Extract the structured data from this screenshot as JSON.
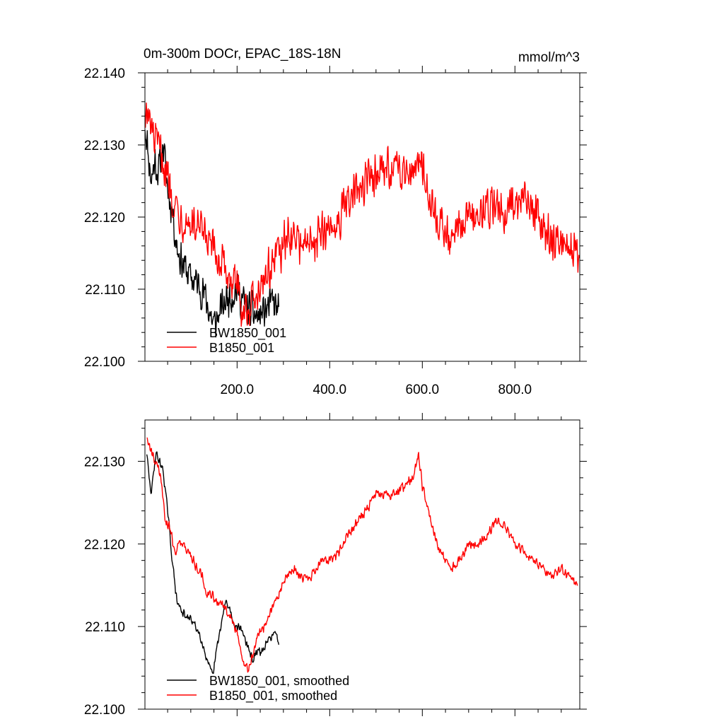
{
  "chart_data": [
    {
      "type": "line",
      "title": "0m-300m DOCr, EPAC_18S-18N",
      "units": "mmol/m^3",
      "xlim": [
        1,
        940
      ],
      "ylim": [
        22.1,
        22.14
      ],
      "x_ticks": [
        200,
        400,
        600,
        800
      ],
      "x_tick_labels": [
        "200.0",
        "400.0",
        "600.0",
        "800.0"
      ],
      "y_ticks": [
        22.1,
        22.11,
        22.12,
        22.13,
        22.14
      ],
      "y_tick_labels": [
        "22.100",
        "22.110",
        "22.120",
        "22.130",
        "22.140"
      ],
      "legend": "bottom-left",
      "series": [
        {
          "name": "BW1850_001",
          "color": "#000000",
          "noise": 0.0032,
          "points": [
            [
              1,
              22.133
            ],
            [
              8,
              22.129
            ],
            [
              15,
              22.125
            ],
            [
              22,
              22.128
            ],
            [
              30,
              22.126
            ],
            [
              40,
              22.13
            ],
            [
              50,
              22.124
            ],
            [
              60,
              22.121
            ],
            [
              70,
              22.116
            ],
            [
              80,
              22.114
            ],
            [
              95,
              22.112
            ],
            [
              110,
              22.111
            ],
            [
              125,
              22.11
            ],
            [
              140,
              22.107
            ],
            [
              150,
              22.105
            ],
            [
              165,
              22.107
            ],
            [
              180,
              22.109
            ],
            [
              200,
              22.11
            ],
            [
              215,
              22.108
            ],
            [
              230,
              22.107
            ],
            [
              245,
              22.106
            ],
            [
              260,
              22.107
            ],
            [
              275,
              22.108
            ],
            [
              290,
              22.107
            ]
          ]
        },
        {
          "name": "B1850_001",
          "color": "#ff0000",
          "noise": 0.0035,
          "points": [
            [
              1,
              22.135
            ],
            [
              10,
              22.133
            ],
            [
              25,
              22.13
            ],
            [
              40,
              22.128
            ],
            [
              60,
              22.123
            ],
            [
              80,
              22.12
            ],
            [
              100,
              22.119
            ],
            [
              120,
              22.118
            ],
            [
              140,
              22.116
            ],
            [
              160,
              22.114
            ],
            [
              180,
              22.112
            ],
            [
              200,
              22.11
            ],
            [
              215,
              22.107
            ],
            [
              230,
              22.108
            ],
            [
              250,
              22.111
            ],
            [
              270,
              22.113
            ],
            [
              290,
              22.115
            ],
            [
              310,
              22.117
            ],
            [
              330,
              22.117
            ],
            [
              350,
              22.116
            ],
            [
              370,
              22.117
            ],
            [
              390,
              22.118
            ],
            [
              410,
              22.119
            ],
            [
              430,
              22.121
            ],
            [
              450,
              22.123
            ],
            [
              470,
              22.124
            ],
            [
              490,
              22.126
            ],
            [
              510,
              22.126
            ],
            [
              530,
              22.127
            ],
            [
              550,
              22.126
            ],
            [
              570,
              22.127
            ],
            [
              590,
              22.128
            ],
            [
              600,
              22.127
            ],
            [
              620,
              22.122
            ],
            [
              640,
              22.119
            ],
            [
              660,
              22.117
            ],
            [
              680,
              22.118
            ],
            [
              700,
              22.12
            ],
            [
              720,
              22.121
            ],
            [
              740,
              22.121
            ],
            [
              760,
              22.122
            ],
            [
              780,
              22.121
            ],
            [
              800,
              22.122
            ],
            [
              820,
              22.123
            ],
            [
              840,
              22.121
            ],
            [
              860,
              22.119
            ],
            [
              880,
              22.117
            ],
            [
              900,
              22.117
            ],
            [
              920,
              22.116
            ],
            [
              930,
              22.116
            ],
            [
              940,
              22.113
            ]
          ]
        }
      ]
    },
    {
      "type": "line",
      "title": "",
      "xlim": [
        1,
        940
      ],
      "ylim": [
        22.1,
        22.135
      ],
      "x_ticks": [
        200,
        400,
        600,
        800
      ],
      "y_ticks": [
        22.1,
        22.11,
        22.12,
        22.13
      ],
      "y_tick_labels": [
        "22.100",
        "22.110",
        "22.120",
        "22.130"
      ],
      "legend": "bottom-left",
      "series": [
        {
          "name": "BW1850_001, smoothed",
          "color": "#000000",
          "noise": 0.0006,
          "points": [
            [
              5,
              22.131
            ],
            [
              10,
              22.128
            ],
            [
              15,
              22.126
            ],
            [
              20,
              22.129
            ],
            [
              25,
              22.131
            ],
            [
              32,
              22.13
            ],
            [
              40,
              22.129
            ],
            [
              50,
              22.124
            ],
            [
              60,
              22.118
            ],
            [
              70,
              22.113
            ],
            [
              80,
              22.112
            ],
            [
              90,
              22.111
            ],
            [
              100,
              22.111
            ],
            [
              110,
              22.11
            ],
            [
              120,
              22.109
            ],
            [
              130,
              22.107
            ],
            [
              140,
              22.105
            ],
            [
              148,
              22.104
            ],
            [
              155,
              22.107
            ],
            [
              165,
              22.11
            ],
            [
              175,
              22.113
            ],
            [
              185,
              22.112
            ],
            [
              195,
              22.11
            ],
            [
              205,
              22.11
            ],
            [
              215,
              22.109
            ],
            [
              225,
              22.107
            ],
            [
              235,
              22.106
            ],
            [
              245,
              22.107
            ],
            [
              255,
              22.107
            ],
            [
              265,
              22.108
            ],
            [
              275,
              22.109
            ],
            [
              285,
              22.109
            ],
            [
              290,
              22.108
            ]
          ]
        },
        {
          "name": "B1850_001, smoothed",
          "color": "#ff0000",
          "noise": 0.0007,
          "points": [
            [
              5,
              22.133
            ],
            [
              15,
              22.131
            ],
            [
              25,
              22.13
            ],
            [
              35,
              22.128
            ],
            [
              45,
              22.123
            ],
            [
              55,
              22.122
            ],
            [
              65,
              22.119
            ],
            [
              75,
              22.12
            ],
            [
              85,
              22.12
            ],
            [
              95,
              22.119
            ],
            [
              105,
              22.118
            ],
            [
              115,
              22.117
            ],
            [
              125,
              22.116
            ],
            [
              135,
              22.114
            ],
            [
              145,
              22.114
            ],
            [
              155,
              22.113
            ],
            [
              165,
              22.113
            ],
            [
              175,
              22.112
            ],
            [
              185,
              22.111
            ],
            [
              195,
              22.11
            ],
            [
              205,
              22.108
            ],
            [
              215,
              22.105
            ],
            [
              225,
              22.105
            ],
            [
              235,
              22.107
            ],
            [
              245,
              22.109
            ],
            [
              260,
              22.11
            ],
            [
              275,
              22.112
            ],
            [
              290,
              22.114
            ],
            [
              305,
              22.116
            ],
            [
              320,
              22.117
            ],
            [
              340,
              22.116
            ],
            [
              360,
              22.116
            ],
            [
              380,
              22.118
            ],
            [
              400,
              22.118
            ],
            [
              420,
              22.119
            ],
            [
              440,
              22.121
            ],
            [
              460,
              22.123
            ],
            [
              480,
              22.124
            ],
            [
              500,
              22.126
            ],
            [
              520,
              22.126
            ],
            [
              540,
              22.126
            ],
            [
              560,
              22.127
            ],
            [
              580,
              22.128
            ],
            [
              592,
              22.131
            ],
            [
              600,
              22.127
            ],
            [
              610,
              22.125
            ],
            [
              620,
              22.122
            ],
            [
              640,
              22.119
            ],
            [
              660,
              22.117
            ],
            [
              680,
              22.118
            ],
            [
              700,
              22.12
            ],
            [
              720,
              22.12
            ],
            [
              740,
              22.121
            ],
            [
              760,
              22.123
            ],
            [
              780,
              22.122
            ],
            [
              800,
              22.12
            ],
            [
              820,
              22.119
            ],
            [
              840,
              22.118
            ],
            [
              860,
              22.117
            ],
            [
              880,
              22.116
            ],
            [
              900,
              22.117
            ],
            [
              920,
              22.116
            ],
            [
              935,
              22.115
            ]
          ]
        }
      ]
    }
  ]
}
